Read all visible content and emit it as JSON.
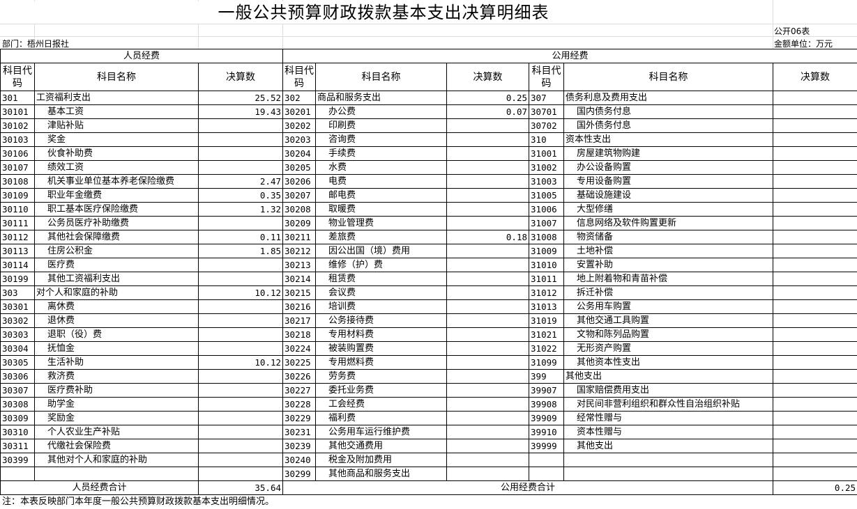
{
  "title": "一般公共预算财政拨款基本支出决算明细表",
  "form_no": "公开06表",
  "department": "部门：梧州日报社",
  "unit": "金额单位：万元",
  "sections": {
    "personnel": "人员经费",
    "public": "公用经费"
  },
  "headers": {
    "code": "科目代码",
    "name": "科目名称",
    "amount": "决算数"
  },
  "rows": [
    {
      "l": [
        "301",
        "工资福利支出",
        "25.52",
        0
      ],
      "m": [
        "302",
        "商品和服务支出",
        "0.25",
        0
      ],
      "r": [
        "307",
        "债务利息及费用支出",
        "",
        0
      ]
    },
    {
      "l": [
        "30101",
        "基本工资",
        "19.43",
        1
      ],
      "m": [
        "30201",
        "办公费",
        "0.07",
        1
      ],
      "r": [
        "30701",
        "国内债务付息",
        "",
        1
      ]
    },
    {
      "l": [
        "30102",
        "津贴补贴",
        "",
        1
      ],
      "m": [
        "30202",
        "印刷费",
        "",
        1
      ],
      "r": [
        "30702",
        "国外债务付息",
        "",
        1
      ]
    },
    {
      "l": [
        "30103",
        "奖金",
        "",
        1
      ],
      "m": [
        "30203",
        "咨询费",
        "",
        1
      ],
      "r": [
        "310",
        "资本性支出",
        "",
        0
      ]
    },
    {
      "l": [
        "30106",
        "伙食补助费",
        "",
        1
      ],
      "m": [
        "30204",
        "手续费",
        "",
        1
      ],
      "r": [
        "31001",
        "房屋建筑物购建",
        "",
        1
      ]
    },
    {
      "l": [
        "30107",
        "绩效工资",
        "",
        1
      ],
      "m": [
        "30205",
        "水费",
        "",
        1
      ],
      "r": [
        "31002",
        "办公设备购置",
        "",
        1
      ]
    },
    {
      "l": [
        "30108",
        "机关事业单位基本养老保险缴费",
        "2.47",
        1
      ],
      "m": [
        "30206",
        "电费",
        "",
        1
      ],
      "r": [
        "31003",
        "专用设备购置",
        "",
        1
      ]
    },
    {
      "l": [
        "30109",
        "职业年金缴费",
        "0.35",
        1
      ],
      "m": [
        "30207",
        "邮电费",
        "",
        1
      ],
      "r": [
        "31005",
        "基础设施建设",
        "",
        1
      ]
    },
    {
      "l": [
        "30110",
        "职工基本医疗保险缴费",
        "1.32",
        1
      ],
      "m": [
        "30208",
        "取暖费",
        "",
        1
      ],
      "r": [
        "31006",
        "大型修缮",
        "",
        1
      ]
    },
    {
      "l": [
        "30111",
        "公务员医疗补助缴费",
        "",
        1
      ],
      "m": [
        "30209",
        "物业管理费",
        "",
        1
      ],
      "r": [
        "31007",
        "信息网络及软件购置更新",
        "",
        1
      ]
    },
    {
      "l": [
        "30112",
        "其他社会保障缴费",
        "0.11",
        1
      ],
      "m": [
        "30211",
        "差旅费",
        "0.18",
        1
      ],
      "r": [
        "31008",
        "物资储备",
        "",
        1
      ]
    },
    {
      "l": [
        "30113",
        "住房公积金",
        "1.85",
        1
      ],
      "m": [
        "30212",
        "因公出国（境）费用",
        "",
        1
      ],
      "r": [
        "31009",
        "土地补偿",
        "",
        1
      ]
    },
    {
      "l": [
        "30114",
        "医疗费",
        "",
        1
      ],
      "m": [
        "30213",
        "维修（护）费",
        "",
        1
      ],
      "r": [
        "31010",
        "安置补助",
        "",
        1
      ]
    },
    {
      "l": [
        "30199",
        "其他工资福利支出",
        "",
        1
      ],
      "m": [
        "30214",
        "租赁费",
        "",
        1
      ],
      "r": [
        "31011",
        "地上附着物和青苗补偿",
        "",
        1
      ]
    },
    {
      "l": [
        "303",
        "对个人和家庭的补助",
        "10.12",
        0
      ],
      "m": [
        "30215",
        "会议费",
        "",
        1
      ],
      "r": [
        "31012",
        "拆迁补偿",
        "",
        1
      ]
    },
    {
      "l": [
        "30301",
        "离休费",
        "",
        1
      ],
      "m": [
        "30216",
        "培训费",
        "",
        1
      ],
      "r": [
        "31013",
        "公务用车购置",
        "",
        1
      ]
    },
    {
      "l": [
        "30302",
        "退休费",
        "",
        1
      ],
      "m": [
        "30217",
        "公务接待费",
        "",
        1
      ],
      "r": [
        "31019",
        "其他交通工具购置",
        "",
        1
      ]
    },
    {
      "l": [
        "30303",
        "退职（役）费",
        "",
        1
      ],
      "m": [
        "30218",
        "专用材料费",
        "",
        1
      ],
      "r": [
        "31021",
        "文物和陈列品购置",
        "",
        1
      ]
    },
    {
      "l": [
        "30304",
        "抚恤金",
        "",
        1
      ],
      "m": [
        "30224",
        "被装购置费",
        "",
        1
      ],
      "r": [
        "31022",
        "无形资产购置",
        "",
        1
      ]
    },
    {
      "l": [
        "30305",
        "生活补助",
        "10.12",
        1
      ],
      "m": [
        "30225",
        "专用燃料费",
        "",
        1
      ],
      "r": [
        "31099",
        "其他资本性支出",
        "",
        1
      ]
    },
    {
      "l": [
        "30306",
        "救济费",
        "",
        1
      ],
      "m": [
        "30226",
        "劳务费",
        "",
        1
      ],
      "r": [
        "399",
        "其他支出",
        "",
        0
      ]
    },
    {
      "l": [
        "30307",
        "医疗费补助",
        "",
        1
      ],
      "m": [
        "30227",
        "委托业务费",
        "",
        1
      ],
      "r": [
        "39907",
        "国家赔偿费用支出",
        "",
        1
      ]
    },
    {
      "l": [
        "30308",
        "助学金",
        "",
        1
      ],
      "m": [
        "30228",
        "工会经费",
        "",
        1
      ],
      "r": [
        "39908",
        "对民间非营利组织和群众性自治组织补贴",
        "",
        1
      ]
    },
    {
      "l": [
        "30309",
        "奖励金",
        "",
        1
      ],
      "m": [
        "30229",
        "福利费",
        "",
        1
      ],
      "r": [
        "39909",
        "经常性赠与",
        "",
        1
      ]
    },
    {
      "l": [
        "30310",
        "个人农业生产补贴",
        "",
        1
      ],
      "m": [
        "30231",
        "公务用车运行维护费",
        "",
        1
      ],
      "r": [
        "39910",
        "资本性赠与",
        "",
        1
      ]
    },
    {
      "l": [
        "30311",
        "代缴社会保险费",
        "",
        1
      ],
      "m": [
        "30239",
        "其他交通费用",
        "",
        1
      ],
      "r": [
        "39999",
        "其他支出",
        "",
        1
      ]
    },
    {
      "l": [
        "30399",
        "其他对个人和家庭的补助",
        "",
        1
      ],
      "m": [
        "30240",
        "税金及附加费用",
        "",
        1
      ],
      "r": [
        "",
        "",
        "",
        0
      ]
    },
    {
      "l": [
        "",
        "",
        "",
        0
      ],
      "m": [
        "30299",
        "其他商品和服务支出",
        "",
        1
      ],
      "r": [
        "",
        "",
        "",
        0
      ]
    }
  ],
  "totals": {
    "personnel_label": "人员经费合计",
    "personnel_value": "35.64",
    "public_label": "公用经费合计",
    "public_value": "0.25"
  },
  "note": "注：本表反映部门本年度一般公共预算财政拨款基本支出明细情况。"
}
